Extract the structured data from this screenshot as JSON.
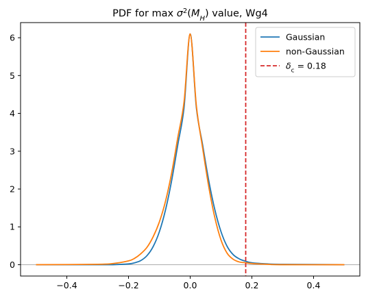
{
  "chart_data": {
    "type": "line",
    "title": "PDF for max σ²(M_H) value, Wg4",
    "title_parts": {
      "prefix": "PDF for max ",
      "sigma": "σ",
      "sup": "2",
      "open": "(",
      "m": "M",
      "sub": "H",
      "close": ")",
      "suffix": " value, Wg4"
    },
    "xlabel": "",
    "ylabel": "",
    "xlim": [
      -0.55,
      0.55
    ],
    "ylim": [
      -0.3,
      6.4
    ],
    "x_ticks": [
      -0.4,
      -0.2,
      0.0,
      0.2,
      0.4
    ],
    "x_tick_labels": [
      "−0.4",
      "−0.2",
      "0.0",
      "0.2",
      "0.4"
    ],
    "y_ticks": [
      0,
      1,
      2,
      3,
      4,
      5,
      6
    ],
    "y_tick_labels": [
      "0",
      "1",
      "2",
      "3",
      "4",
      "5",
      "6"
    ],
    "grid": false,
    "legend_position": "top-right",
    "series": [
      {
        "name": "Gaussian",
        "color": "#1f77b4",
        "style": "solid",
        "x": [
          -0.5,
          -0.3,
          -0.25,
          -0.2,
          -0.18,
          -0.16,
          -0.14,
          -0.12,
          -0.1,
          -0.08,
          -0.06,
          -0.04,
          -0.02,
          0.0,
          0.02,
          0.04,
          0.06,
          0.08,
          0.1,
          0.12,
          0.14,
          0.16,
          0.18,
          0.2,
          0.25,
          0.3,
          0.5
        ],
        "y": [
          0.0,
          0.0,
          0.0,
          0.02,
          0.05,
          0.11,
          0.24,
          0.48,
          0.87,
          1.45,
          2.23,
          3.18,
          4.15,
          6.1,
          4.15,
          3.18,
          2.23,
          1.45,
          0.87,
          0.48,
          0.26,
          0.15,
          0.09,
          0.05,
          0.02,
          0.01,
          0.0
        ]
      },
      {
        "name": "non-Gaussian",
        "color": "#ff7f0e",
        "style": "solid",
        "x": [
          -0.5,
          -0.3,
          -0.25,
          -0.2,
          -0.18,
          -0.16,
          -0.14,
          -0.12,
          -0.1,
          -0.08,
          -0.06,
          -0.04,
          -0.02,
          0.0,
          0.02,
          0.04,
          0.06,
          0.08,
          0.1,
          0.12,
          0.14,
          0.16,
          0.18,
          0.2,
          0.25,
          0.3,
          0.5
        ],
        "y": [
          0.0,
          0.01,
          0.03,
          0.1,
          0.17,
          0.29,
          0.46,
          0.74,
          1.13,
          1.68,
          2.43,
          3.37,
          4.3,
          6.1,
          4.2,
          3.1,
          2.07,
          1.24,
          0.65,
          0.3,
          0.14,
          0.07,
          0.05,
          0.03,
          0.01,
          0.0,
          0.0
        ]
      },
      {
        "name": "δ_c = 0.18",
        "label_parts": {
          "delta": "δ",
          "sub": "c",
          "rest": " = 0.18"
        },
        "color": "#d62728",
        "style": "dashed",
        "vline_x": 0.18
      }
    ],
    "reference_line": {
      "y": 0,
      "color": "#a0a0a0"
    }
  }
}
